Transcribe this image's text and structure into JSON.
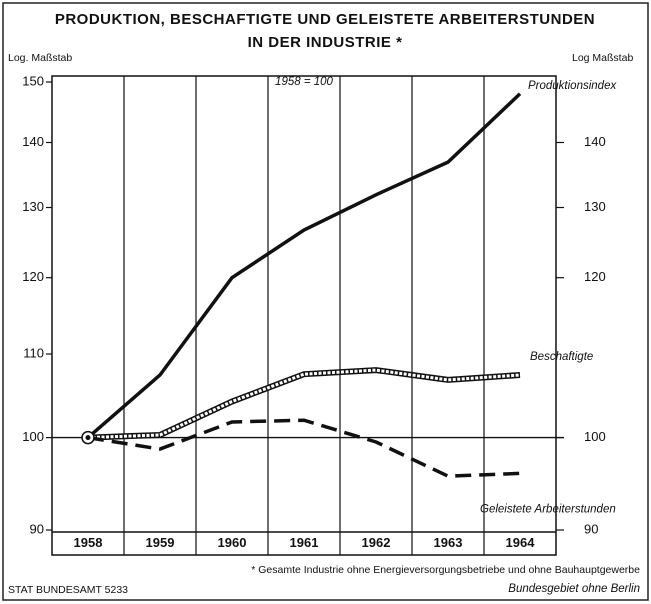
{
  "chart_data": {
    "type": "line",
    "title": "PRODUKTION, BESCHAFTIGTE UND GELEISTETE ARBEITERSTUNDEN",
    "subtitle": "IN DER INDUSTRIE *",
    "y_axis_label": "Log. Maßstab",
    "y2_axis_label": "Log Maßstab",
    "annotation": "1958 = 100",
    "footnote": "* Gesamte Industrie ohne Energieversorgungsbetriebe und ohne Bauhauptgewerbe",
    "footnote2": "Bundesgebiet ohne Berlin",
    "source": "STAT BUNDESAMT 5233",
    "log_scale": true,
    "categories": [
      "1958",
      "1959",
      "1960",
      "1961",
      "1962",
      "1963",
      "1964"
    ],
    "series": [
      {
        "name": "Produktionsindex",
        "color": "#111111",
        "style": "solid",
        "values": [
          100,
          107.4,
          120,
          126.7,
          131.9,
          136.9,
          148
        ]
      },
      {
        "name": "Beschaftigte",
        "color": "#111111",
        "style": "hollow",
        "values": [
          100,
          100.3,
          104.2,
          107.5,
          108,
          106.8,
          107.4
        ]
      },
      {
        "name": "Geleistete Arbeiterstunden",
        "color": "#111111",
        "style": "dashed",
        "values": [
          100,
          98.7,
          101.8,
          102,
          99.5,
          95.7,
          96
        ]
      }
    ],
    "ylim": [
      90,
      150
    ],
    "yticks": [
      90,
      100,
      110,
      120,
      130,
      140,
      150
    ],
    "y2lim": [
      90,
      150
    ],
    "y2ticks": [
      90,
      100,
      120,
      130,
      140
    ]
  }
}
